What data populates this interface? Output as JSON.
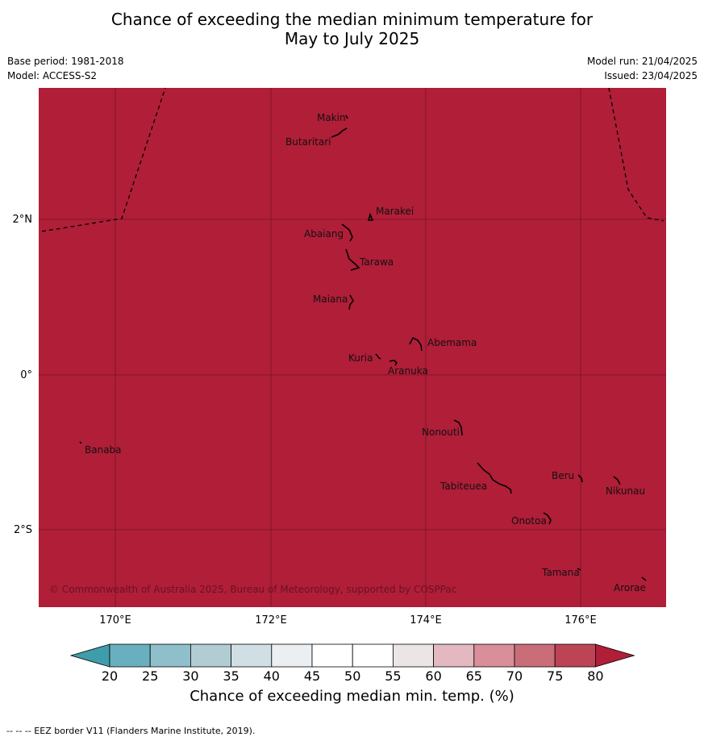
{
  "title": {
    "line1": "Chance of exceeding the median minimum temperature for",
    "line2": "May to July 2025"
  },
  "meta": {
    "base_period": "Base period: 1981-2018",
    "model": "Model: ACCESS-S2",
    "model_run": "Model run: 21/04/2025",
    "issued": "Issued: 23/04/2025"
  },
  "map": {
    "fill_color": "#b01e38",
    "lon_ticks": [
      "170°E",
      "172°E",
      "174°E",
      "176°E"
    ],
    "lat_ticks": [
      "2°N",
      "0°",
      "2°S"
    ],
    "copyright": "© Commonwealth of Australia 2025, Bureau of Meteorology, supported by COSPPac",
    "places": [
      "Makin",
      "Butaritari",
      "Marakei",
      "Abaiang",
      "Tarawa",
      "Maiana",
      "Abemama",
      "Kuria",
      "Aranuka",
      "Nonouti",
      "Banaba",
      "Beru",
      "Nikunau",
      "Tabiteuea",
      "Onotoa",
      "Tamana",
      "Arorae"
    ]
  },
  "colorbar": {
    "ticks": [
      "20",
      "25",
      "30",
      "35",
      "40",
      "45",
      "50",
      "55",
      "60",
      "65",
      "70",
      "75",
      "80"
    ],
    "colors": [
      "#3f9cab",
      "#6aafbd",
      "#8fbfcb",
      "#b1cdd3",
      "#d0dfe3",
      "#eceff1",
      "#ffffff",
      "#ffffff",
      "#ebe5e6",
      "#e3b8c0",
      "#d88f99",
      "#c96e78",
      "#bd4455",
      "#b01e38"
    ],
    "label": "Chance of exceeding median min. temp. (%)"
  },
  "footnote": "--  --  -- EEZ border V11 (Flanders Marine Institute, 2019)."
}
